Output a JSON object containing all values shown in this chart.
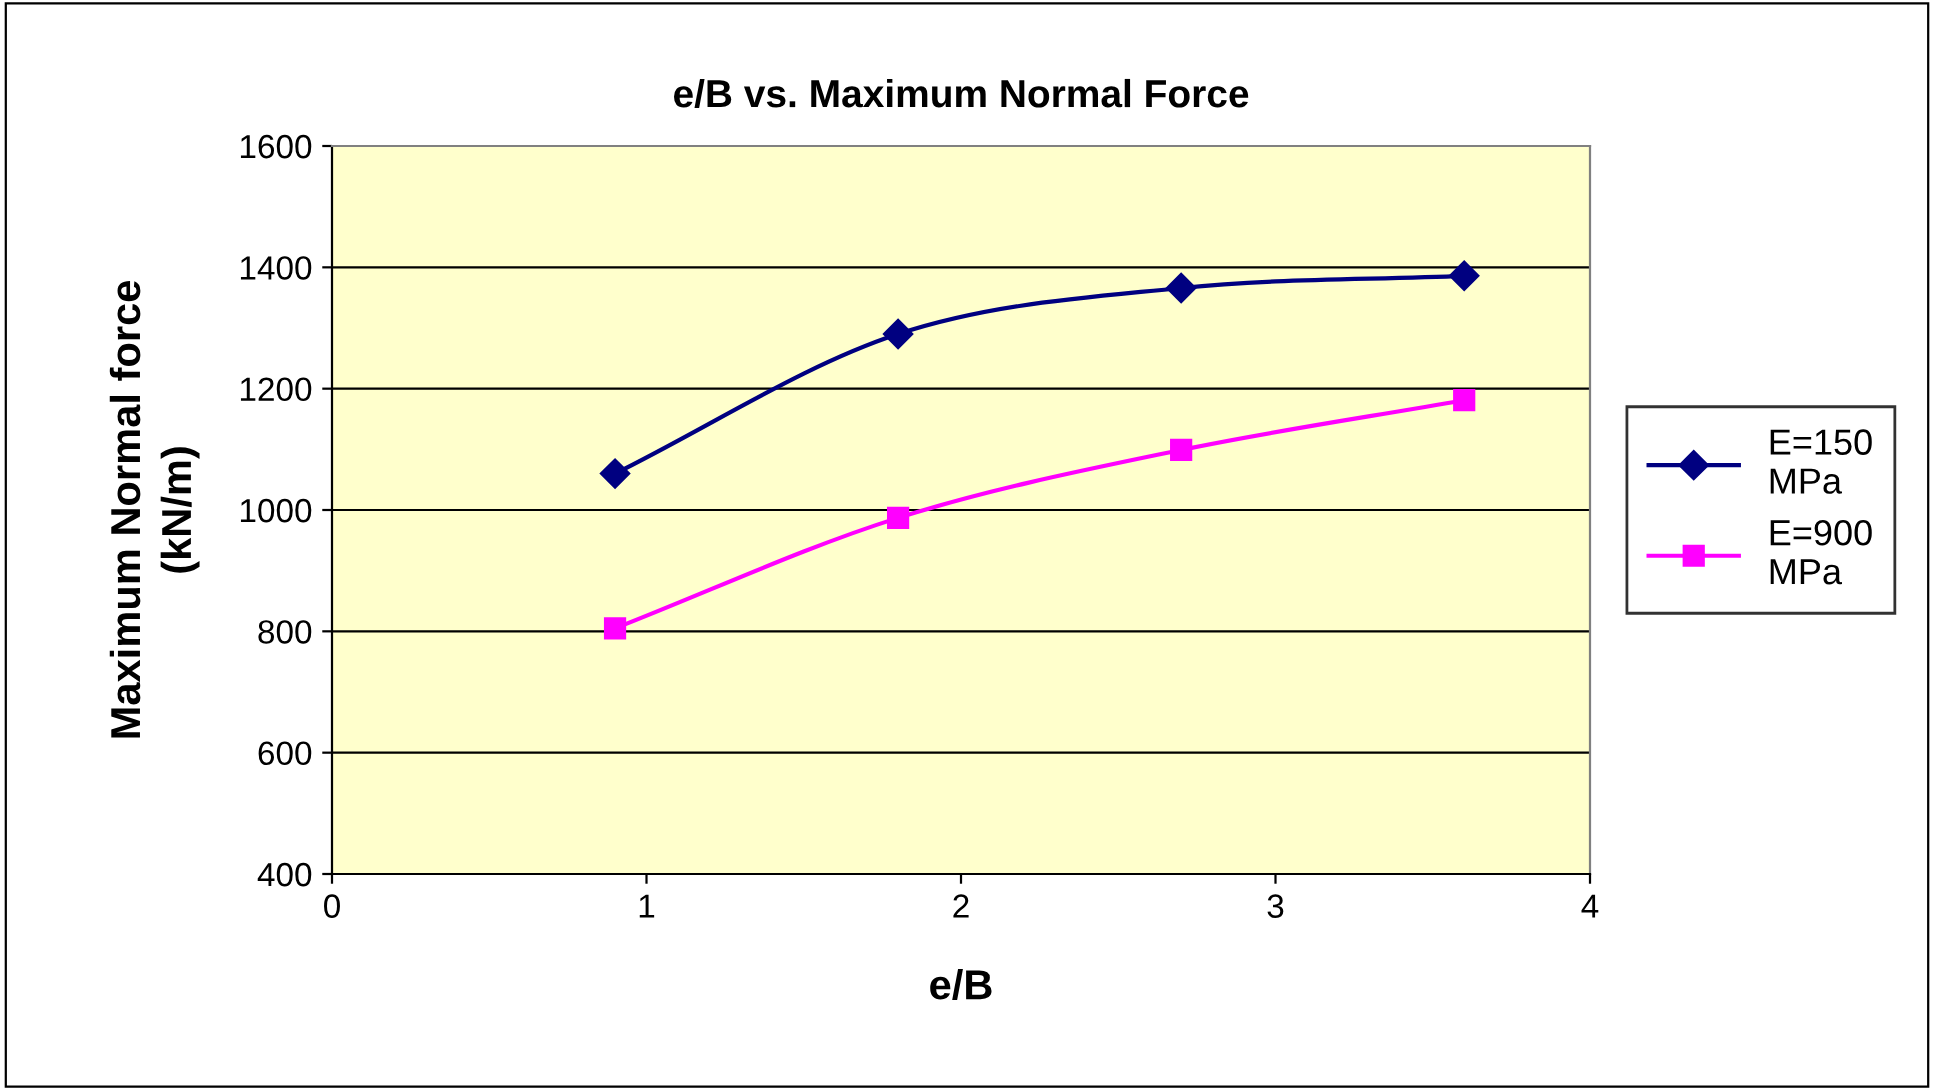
{
  "chart_data": {
    "type": "line",
    "title": "e/B vs. Maximum Normal Force",
    "xlabel": "e/B",
    "ylabel": "Maximum Normal force\n(kN/m)",
    "x": [
      0.9,
      1.8,
      2.7,
      3.6
    ],
    "series": [
      {
        "name": "E=150 MPa",
        "color": "#000080",
        "marker": "diamond",
        "values": [
          1060,
          1290,
          1366,
          1386
        ]
      },
      {
        "name": "E=900 MPa",
        "color": "#ff00ff",
        "marker": "square",
        "values": [
          805,
          987,
          1099,
          1181
        ]
      }
    ],
    "xlim": [
      0,
      4
    ],
    "xticks": [
      0,
      1,
      2,
      3,
      4
    ],
    "ylim": [
      400,
      1600
    ],
    "yticks": [
      400,
      600,
      800,
      1000,
      1200,
      1400,
      1600
    ],
    "grid": "y",
    "legend": "right",
    "line_style": "solid"
  }
}
